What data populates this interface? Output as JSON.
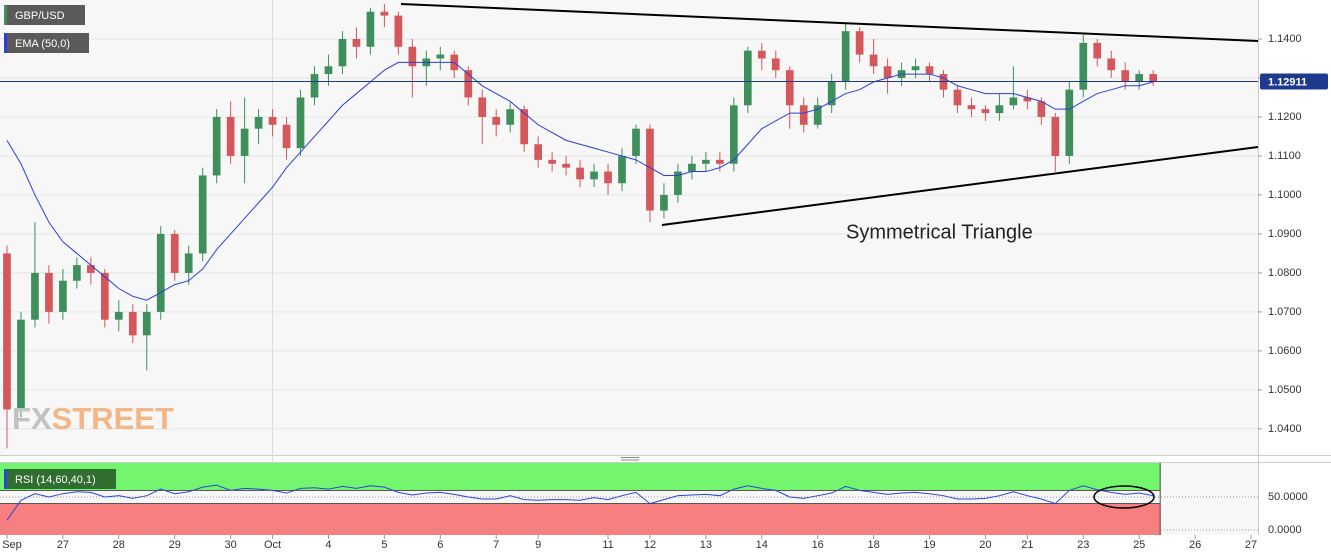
{
  "chart_data": {
    "type": "candlestick",
    "categories": [
      "Sep",
      null,
      null,
      null,
      "27",
      null,
      null,
      null,
      "28",
      null,
      null,
      null,
      "29",
      null,
      null,
      null,
      "30",
      null,
      null,
      "Oct",
      null,
      null,
      null,
      "4",
      null,
      null,
      null,
      "5",
      null,
      null,
      null,
      "6",
      null,
      null,
      null,
      "7",
      null,
      null,
      "9",
      null,
      null,
      null,
      null,
      "11",
      null,
      null,
      "12",
      null,
      null,
      null,
      "13",
      null,
      null,
      null,
      "14",
      null,
      null,
      null,
      "16",
      null,
      null,
      null,
      "18",
      null,
      null,
      null,
      "19",
      null,
      null,
      null,
      "20",
      null,
      null,
      "21",
      null,
      null,
      null,
      "23",
      null,
      null,
      null,
      "25",
      null,
      null,
      null,
      "26",
      null,
      null,
      null,
      "27"
    ],
    "ohlc": {
      "name": "GBP/USD",
      "up_color": "#3f8f5c",
      "down_color": "#d4575b",
      "open": [
        1.085,
        1.045,
        1.068,
        1.08,
        1.07,
        1.078,
        1.082,
        1.08,
        1.068,
        1.07,
        1.064,
        1.07,
        1.09,
        1.08,
        1.085,
        1.105,
        1.12,
        1.11,
        1.117,
        1.12,
        1.118,
        1.112,
        1.125,
        1.131,
        1.133,
        1.14,
        1.138,
        1.147,
        1.146,
        1.138,
        1.133,
        1.135,
        1.136,
        1.132,
        1.125,
        1.12,
        1.118,
        1.122,
        1.113,
        1.109,
        1.108,
        1.107,
        1.104,
        1.106,
        1.103,
        1.11,
        1.117,
        1.096,
        1.1,
        1.106,
        1.108,
        1.109,
        1.108,
        1.123,
        1.137,
        1.135,
        1.132,
        1.123,
        1.118,
        1.123,
        1.129,
        1.142,
        1.136,
        1.133,
        1.13,
        1.132,
        1.133,
        1.131,
        1.127,
        1.123,
        1.122,
        1.121,
        1.123,
        1.125,
        1.124,
        1.12,
        1.11,
        1.127,
        1.139,
        1.135,
        1.132,
        1.129,
        1.131,
        null,
        null,
        null,
        null,
        null,
        null,
        null
      ],
      "high": [
        1.087,
        1.07,
        1.093,
        1.082,
        1.081,
        1.084,
        1.084,
        1.081,
        1.073,
        1.072,
        1.072,
        1.092,
        1.091,
        1.087,
        1.107,
        1.122,
        1.124,
        1.125,
        1.122,
        1.122,
        1.12,
        1.127,
        1.133,
        1.136,
        1.142,
        1.143,
        1.148,
        1.149,
        1.147,
        1.14,
        1.137,
        1.138,
        1.137,
        1.133,
        1.127,
        1.122,
        1.124,
        1.123,
        1.115,
        1.111,
        1.11,
        1.109,
        1.108,
        1.108,
        1.112,
        1.118,
        1.118,
        1.103,
        1.108,
        1.11,
        1.111,
        1.111,
        1.125,
        1.138,
        1.139,
        1.137,
        1.133,
        1.125,
        1.125,
        1.131,
        1.144,
        1.143,
        1.14,
        1.135,
        1.134,
        1.135,
        1.134,
        1.132,
        1.128,
        1.125,
        1.123,
        1.126,
        1.133,
        1.127,
        1.125,
        1.121,
        1.129,
        1.141,
        1.14,
        1.137,
        1.134,
        1.132,
        1.132,
        null,
        null,
        null,
        null,
        null,
        null,
        null
      ],
      "low": [
        1.035,
        1.043,
        1.066,
        1.067,
        1.068,
        1.076,
        1.077,
        1.066,
        1.065,
        1.062,
        1.055,
        1.068,
        1.078,
        1.077,
        1.083,
        1.103,
        1.108,
        1.103,
        1.113,
        1.115,
        1.109,
        1.11,
        1.123,
        1.128,
        1.131,
        1.135,
        1.136,
        1.143,
        1.136,
        1.125,
        1.128,
        1.132,
        1.13,
        1.123,
        1.113,
        1.115,
        1.116,
        1.111,
        1.107,
        1.106,
        1.105,
        1.102,
        1.102,
        1.1,
        1.101,
        1.108,
        1.093,
        1.094,
        1.098,
        1.104,
        1.106,
        1.106,
        1.106,
        1.121,
        1.132,
        1.13,
        1.117,
        1.116,
        1.117,
        1.121,
        1.127,
        1.134,
        1.131,
        1.126,
        1.128,
        1.13,
        1.129,
        1.125,
        1.121,
        1.12,
        1.119,
        1.119,
        1.122,
        1.122,
        1.118,
        1.106,
        1.108,
        1.125,
        1.133,
        1.13,
        1.127,
        1.127,
        1.128,
        null,
        null,
        null,
        null,
        null,
        null,
        null
      ],
      "close": [
        1.045,
        1.068,
        1.08,
        1.07,
        1.078,
        1.082,
        1.08,
        1.068,
        1.07,
        1.064,
        1.07,
        1.09,
        1.08,
        1.085,
        1.105,
        1.12,
        1.11,
        1.117,
        1.12,
        1.118,
        1.112,
        1.125,
        1.131,
        1.133,
        1.14,
        1.138,
        1.147,
        1.146,
        1.138,
        1.133,
        1.135,
        1.136,
        1.132,
        1.125,
        1.12,
        1.118,
        1.122,
        1.113,
        1.109,
        1.108,
        1.107,
        1.104,
        1.106,
        1.103,
        1.11,
        1.117,
        1.096,
        1.1,
        1.106,
        1.108,
        1.109,
        1.108,
        1.123,
        1.137,
        1.135,
        1.132,
        1.123,
        1.118,
        1.123,
        1.129,
        1.142,
        1.136,
        1.133,
        1.13,
        1.132,
        1.133,
        1.131,
        1.127,
        1.123,
        1.122,
        1.121,
        1.123,
        1.125,
        1.124,
        1.12,
        1.11,
        1.127,
        1.139,
        1.135,
        1.132,
        1.129,
        1.131,
        1.12911,
        null,
        null,
        null,
        null,
        null,
        null,
        null
      ]
    },
    "ema": {
      "name": "EMA (50,0)",
      "color": "#2b3fd6",
      "values": [
        1.114,
        1.108,
        1.1,
        1.093,
        1.088,
        1.085,
        1.082,
        1.079,
        1.076,
        1.074,
        1.073,
        1.075,
        1.077,
        1.078,
        1.081,
        1.086,
        1.09,
        1.094,
        1.098,
        1.102,
        1.107,
        1.111,
        1.115,
        1.119,
        1.123,
        1.126,
        1.129,
        1.132,
        1.134,
        1.134,
        1.134,
        1.134,
        1.134,
        1.131,
        1.128,
        1.126,
        1.124,
        1.121,
        1.118,
        1.116,
        1.114,
        1.113,
        1.112,
        1.111,
        1.11,
        1.109,
        1.107,
        1.105,
        1.105,
        1.106,
        1.106,
        1.107,
        1.109,
        1.113,
        1.117,
        1.119,
        1.121,
        1.121,
        1.122,
        1.124,
        1.126,
        1.127,
        1.129,
        1.13,
        1.131,
        1.131,
        1.131,
        1.13,
        1.128,
        1.127,
        1.126,
        1.126,
        1.126,
        1.125,
        1.124,
        1.122,
        1.122,
        1.124,
        1.126,
        1.127,
        1.128,
        1.128,
        1.129,
        null,
        null,
        null,
        null,
        null,
        null,
        null
      ]
    },
    "ylim": [
      1.0333,
      1.15
    ],
    "yticks": [
      {
        "value": 1.14,
        "label": "1.1400"
      },
      {
        "value": 1.13,
        "label": "1.1300"
      },
      {
        "value": 1.12,
        "label": "1.1200"
      },
      {
        "value": 1.11,
        "label": "1.1100"
      },
      {
        "value": 1.1,
        "label": "1.1000"
      },
      {
        "value": 1.09,
        "label": "1.0900"
      },
      {
        "value": 1.08,
        "label": "1.0800"
      },
      {
        "value": 1.07,
        "label": "1.0700"
      },
      {
        "value": 1.06,
        "label": "1.0600"
      },
      {
        "value": 1.05,
        "label": "1.0500"
      },
      {
        "value": 1.04,
        "label": "1.0400"
      }
    ],
    "grid": true,
    "last_price": 1.12911,
    "last_price_color": "#1d3a8f",
    "annotation": "Symmetrical Triangle",
    "logo": [
      "FX",
      "STREET"
    ],
    "rsi": {
      "name": "RSI (14,60,40,1)",
      "color": "#2b45d8",
      "upper": 60,
      "lower": 40,
      "upper_color": "#74f56e",
      "lower_color": "#f77f7f",
      "ylim": [
        0,
        100
      ],
      "yticks": [
        {
          "value": 50,
          "label": "50.0000"
        },
        {
          "value": 0,
          "label": "0.0000"
        }
      ],
      "values": [
        15,
        45,
        55,
        50,
        55,
        58,
        57,
        50,
        52,
        48,
        52,
        62,
        55,
        58,
        65,
        68,
        60,
        63,
        62,
        60,
        56,
        63,
        64,
        62,
        66,
        63,
        67,
        65,
        57,
        53,
        56,
        57,
        54,
        50,
        47,
        47,
        52,
        46,
        45,
        46,
        46,
        45,
        49,
        46,
        52,
        57,
        40,
        46,
        52,
        53,
        54,
        52,
        62,
        67,
        63,
        60,
        50,
        48,
        52,
        56,
        66,
        60,
        57,
        54,
        56,
        57,
        55,
        52,
        47,
        47,
        48,
        52,
        58,
        52,
        47,
        40,
        60,
        67,
        61,
        57,
        54,
        56,
        52,
        null,
        null,
        null,
        null,
        null,
        null,
        null
      ]
    }
  }
}
